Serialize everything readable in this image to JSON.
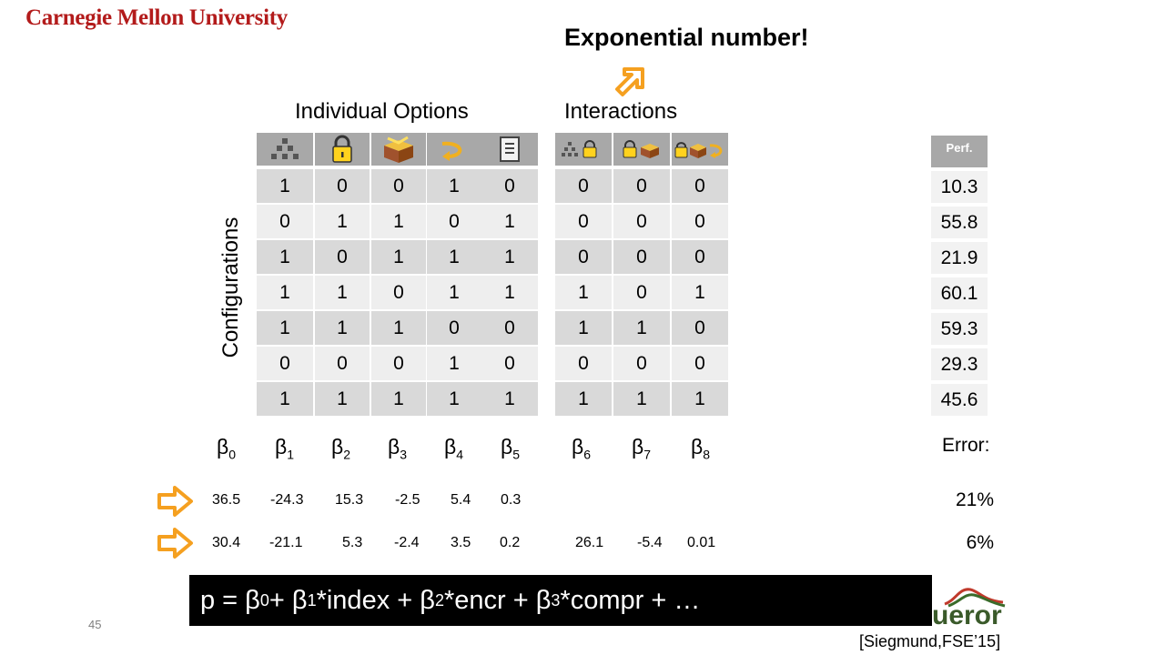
{
  "header": {
    "university": "Carnegie Mellon University",
    "headline": "Exponential number!"
  },
  "labels": {
    "individual_options": "Individual Options",
    "interactions": "Interactions",
    "configurations": "Configurations"
  },
  "icons": [
    "index-icon",
    "lock-icon",
    "box-icon",
    "arrow-icon",
    "document-icon",
    "index-lock-icon",
    "lock-box-icon",
    "lock-box-arrow-icon"
  ],
  "options_matrix": [
    [
      "1",
      "0",
      "0",
      "1",
      "0"
    ],
    [
      "0",
      "1",
      "1",
      "0",
      "1"
    ],
    [
      "1",
      "0",
      "1",
      "1",
      "1"
    ],
    [
      "1",
      "1",
      "0",
      "1",
      "1"
    ],
    [
      "1",
      "1",
      "1",
      "0",
      "0"
    ],
    [
      "0",
      "0",
      "0",
      "1",
      "0"
    ],
    [
      "1",
      "1",
      "1",
      "1",
      "1"
    ]
  ],
  "interactions_matrix": [
    [
      "0",
      "0",
      "0"
    ],
    [
      "0",
      "0",
      "0"
    ],
    [
      "0",
      "0",
      "0"
    ],
    [
      "1",
      "0",
      "1"
    ],
    [
      "1",
      "1",
      "0"
    ],
    [
      "0",
      "0",
      "0"
    ],
    [
      "1",
      "1",
      "1"
    ]
  ],
  "perf": {
    "header": "Perf.",
    "values": [
      "10.3",
      "55.8",
      "21.9",
      "60.1",
      "59.3",
      "29.3",
      "45.6"
    ]
  },
  "betas": [
    "0",
    "1",
    "2",
    "3",
    "4",
    "5",
    "6",
    "7",
    "8"
  ],
  "beta_symbol": "β",
  "error_label": "Error:",
  "model1": {
    "coefficients": [
      "36.5",
      "-24.3",
      "15.3",
      "-2.5",
      "5.4",
      "0.3"
    ],
    "error": "21%"
  },
  "model2": {
    "coefficients": [
      "30.4",
      "-21.1",
      "5.3",
      "-2.4",
      "3.5",
      "0.2",
      "26.1",
      "-5.4",
      "0.01"
    ],
    "error": "6%"
  },
  "formula": {
    "p": "p = β",
    "parts": [
      "0",
      " + β",
      "1",
      "*index + β",
      "2",
      "*encr + β",
      "3",
      "*compr + …"
    ]
  },
  "slide_number": "45",
  "citation": "[Siegmund,FSE’15]",
  "tool_logo": "ueror",
  "colors": {
    "accent_arrow": "#f5a020",
    "header_gray": "#a8a8a8",
    "cell_dark": "#d9d9d9",
    "cell_light": "#eeeeee",
    "cmu_red": "#b31b1b"
  }
}
